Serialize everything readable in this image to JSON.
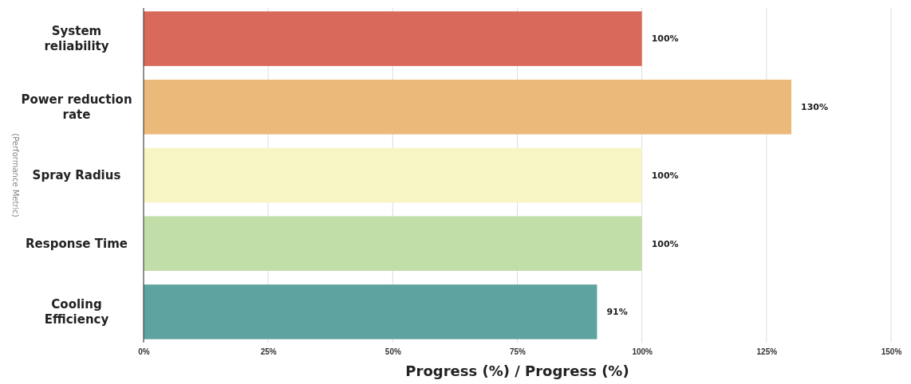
{
  "chart_data": {
    "type": "bar",
    "orientation": "horizontal",
    "ylabel": "(Performance Metric)",
    "xlabel": "Progress (%) / Progress (%)",
    "categories": [
      "System reliability",
      "Power reduction rate",
      "Spray Radius",
      "Response Time",
      "Cooling Efficiency"
    ],
    "values": [
      100,
      130,
      100,
      100,
      91
    ],
    "colors": [
      "#d9695a",
      "#ebb97a",
      "#f7f5c4",
      "#c2dea8",
      "#5fa3a0"
    ],
    "value_labels": [
      "100%",
      "130%",
      "100%",
      "100%",
      "91%"
    ],
    "xlim": [
      0,
      150
    ],
    "xticks": [
      {
        "value": 0,
        "label": "0%"
      },
      {
        "value": 25,
        "label": "25%"
      },
      {
        "value": 50,
        "label": "50%"
      },
      {
        "value": 75,
        "label": "75%"
      },
      {
        "value": 100,
        "label": "100%"
      },
      {
        "value": 125,
        "label": "125%"
      },
      {
        "value": 150,
        "label": "150%"
      }
    ],
    "grid": "x"
  }
}
